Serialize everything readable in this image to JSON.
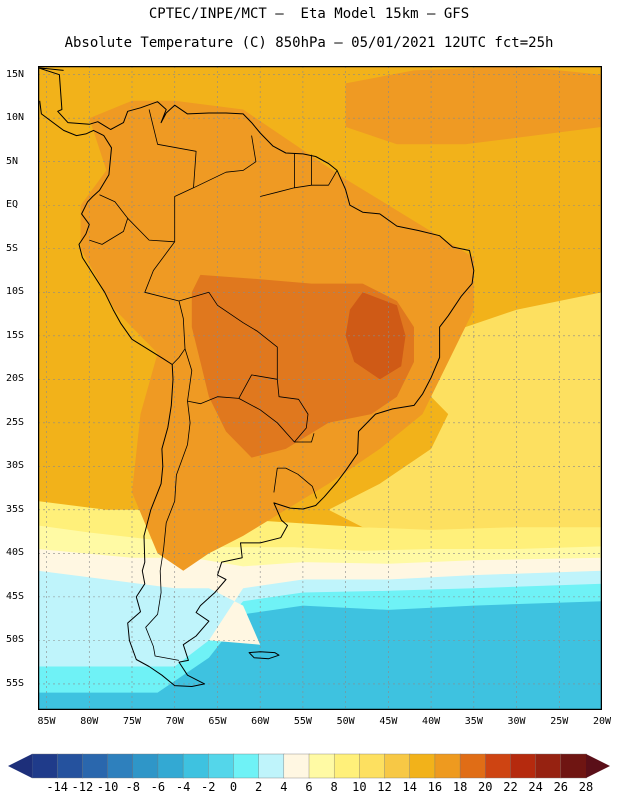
{
  "title_line1": "CPTEC/INPE/MCT –  Eta Model 15km – GFS",
  "title_line2": "Absolute Temperature (C) 850hPa – 05/01/2021 12UTC fct=25h",
  "lat_labels": [
    "15N",
    "10N",
    "5N",
    "EQ",
    "5S",
    "10S",
    "15S",
    "20S",
    "25S",
    "30S",
    "35S",
    "40S",
    "45S",
    "50S",
    "55S"
  ],
  "lon_labels": [
    "85W",
    "80W",
    "75W",
    "70W",
    "65W",
    "60W",
    "55W",
    "50W",
    "45W",
    "40W",
    "35W",
    "30W",
    "25W",
    "20W"
  ],
  "colorbar": {
    "labels": [
      "-14",
      "-12",
      "-10",
      "-8",
      "-6",
      "-4",
      "-2",
      "0",
      "2",
      "4",
      "6",
      "8",
      "10",
      "12",
      "14",
      "16",
      "18",
      "20",
      "22",
      "24",
      "26",
      "28"
    ],
    "colors": [
      "#1f3b8a",
      "#25529e",
      "#2a67ad",
      "#2e80bd",
      "#2f96c8",
      "#33a9d3",
      "#3ec2e0",
      "#54d6ea",
      "#6ff2f6",
      "#bff4fb",
      "#fff7e2",
      "#fffaa4",
      "#fff07a",
      "#fde060",
      "#f7c845",
      "#f2b21a",
      "#ee9a1f",
      "#e06d16",
      "#ce4412",
      "#b52a0e",
      "#962211",
      "#6f1512"
    ],
    "low_color": "#1d2f7a",
    "high_color": "#5a0f18"
  },
  "map_colors": {
    "warm_20": "#e0781e",
    "warm_18": "#ef9a23",
    "warm_16": "#f2b21a",
    "c14": "#f7c845",
    "c12": "#fde060",
    "c10": "#fff07a",
    "c8": "#fffaa4",
    "c6": "#fff7e2",
    "c4": "#bff4fb",
    "c2": "#6ff2f6",
    "c0": "#54d6ea",
    "cm2": "#3ec2e0",
    "hot_22": "#cf5a16"
  }
}
